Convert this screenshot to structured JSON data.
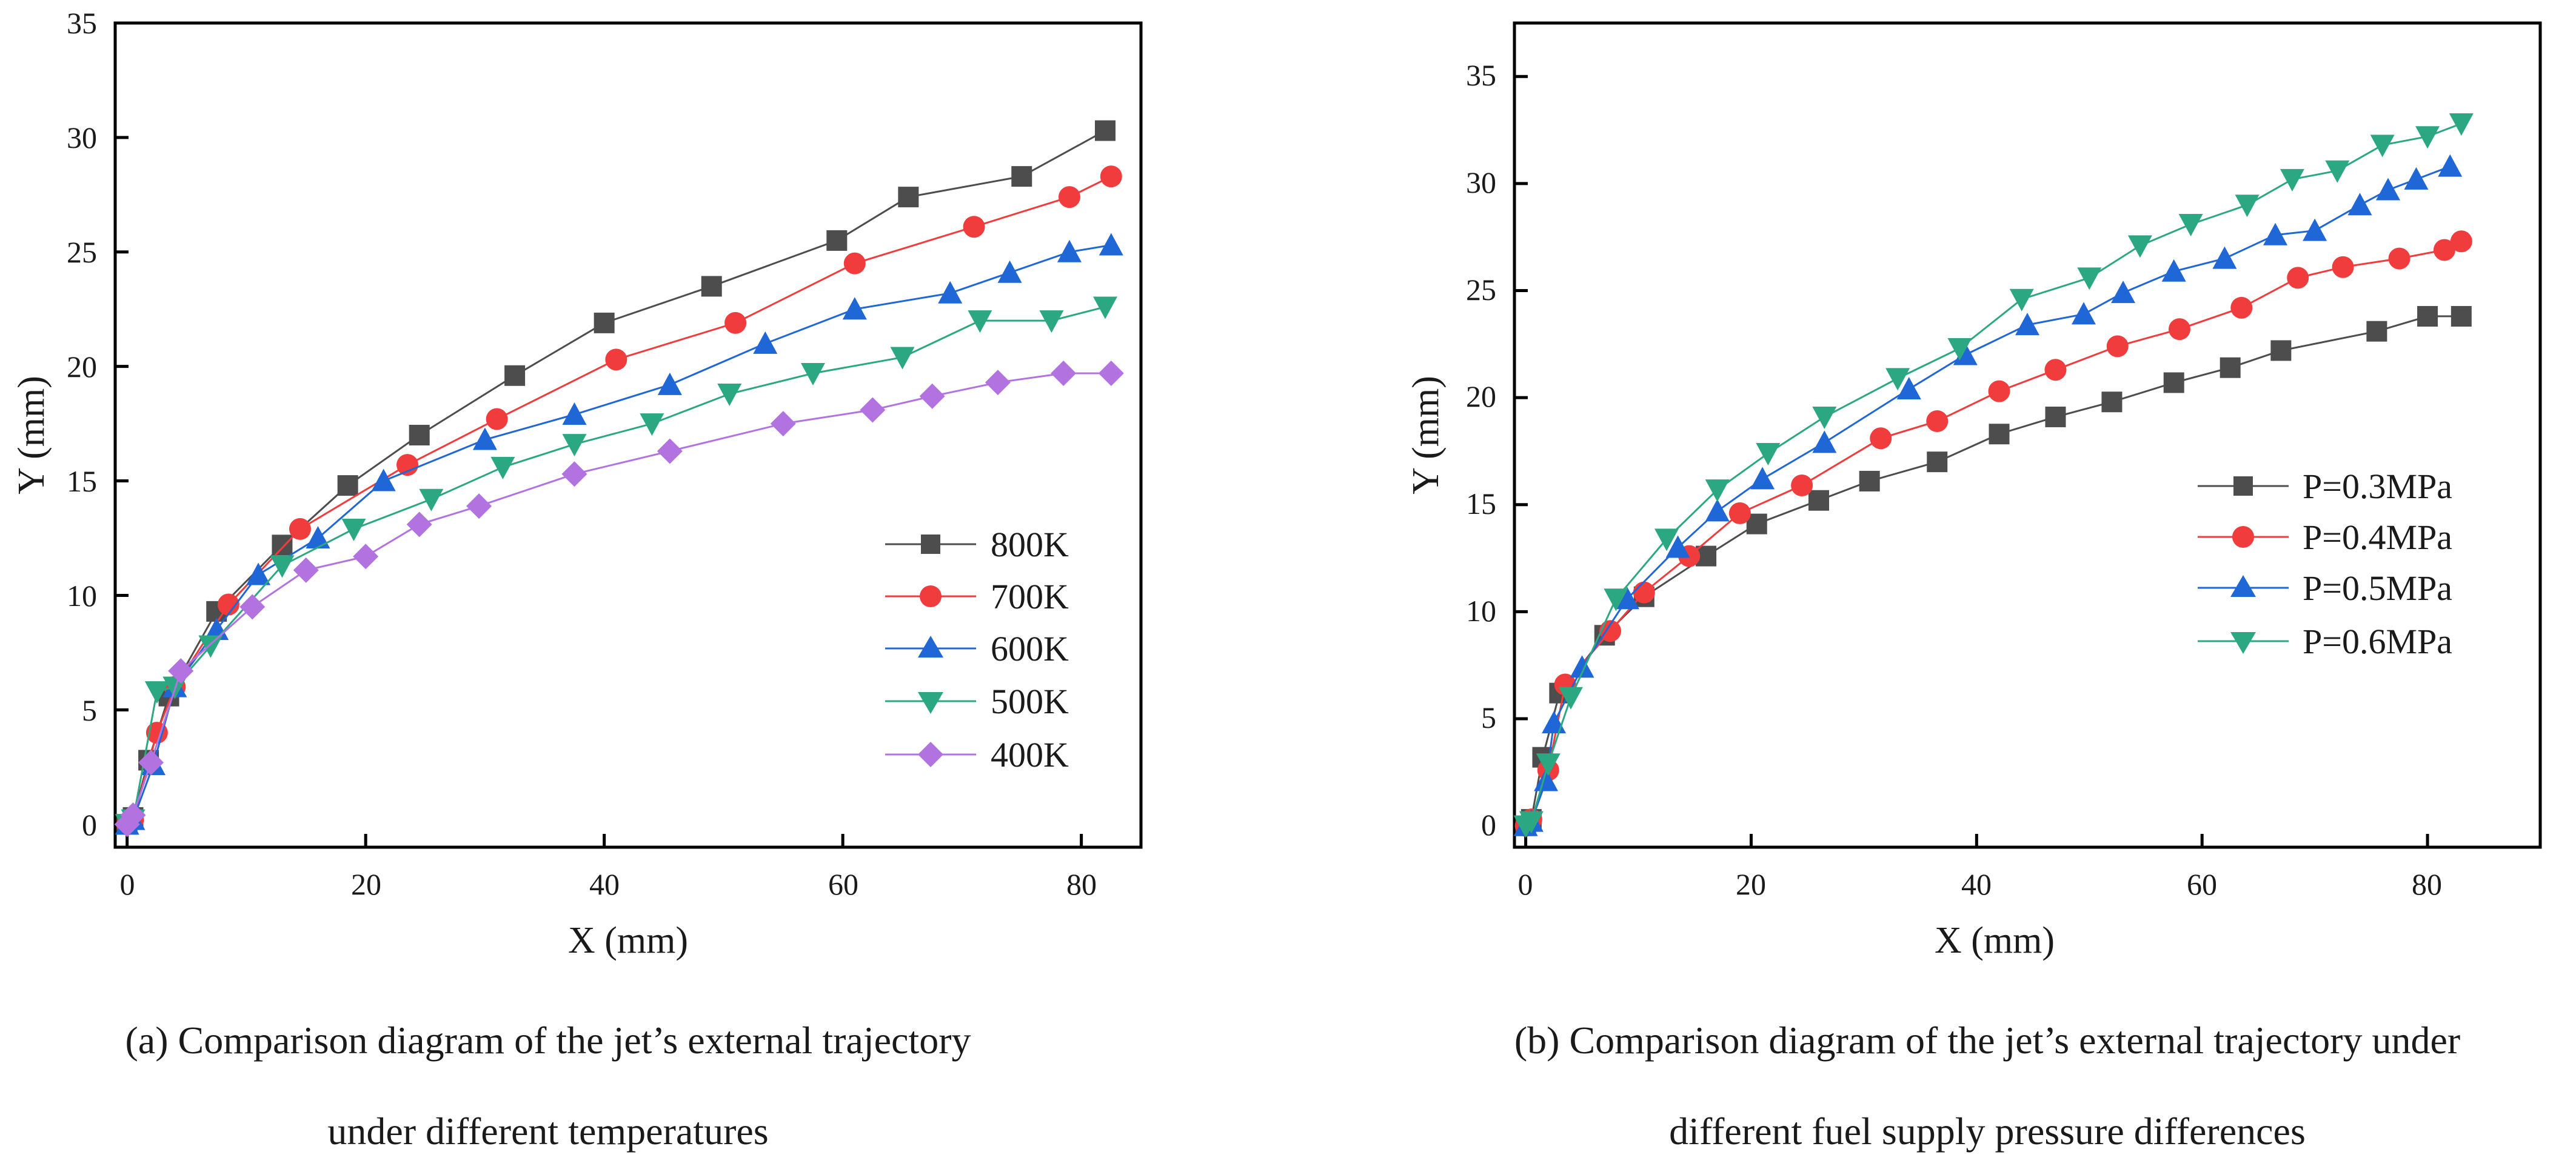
{
  "chart_data": [
    {
      "type": "line",
      "panel": "a",
      "title": "",
      "xlabel": "X (mm)",
      "ylabel": "Y (mm)",
      "xlim": [
        -1,
        85
      ],
      "ylim": [
        -1,
        35
      ],
      "xticks": [
        0,
        20,
        40,
        60,
        80
      ],
      "yticks": [
        0,
        5,
        10,
        15,
        20,
        25,
        30,
        35
      ],
      "grid": false,
      "legend_position": "bottom-right",
      "caption_line1": "(a) Comparison diagram of the jet’s external trajectory",
      "caption_line2": "under different temperatures",
      "series": [
        {
          "name": "800K",
          "color": "#4d4d4d",
          "marker": "square",
          "x": [
            0,
            0.5,
            1.8,
            3.5,
            7.5,
            13,
            18.5,
            24.5,
            32.5,
            40,
            49,
            59.5,
            65.5,
            75,
            82
          ],
          "y": [
            0,
            0.3,
            2.8,
            5.6,
            9.3,
            12.2,
            14.8,
            17,
            19.6,
            21.9,
            23.5,
            25.5,
            27.4,
            28.3,
            30.3
          ]
        },
        {
          "name": "700K",
          "color": "#f03c3c",
          "marker": "circle",
          "x": [
            0,
            0.5,
            2.5,
            4,
            8.5,
            14.5,
            23.5,
            31,
            41,
            51,
            61,
            71,
            79,
            82.5
          ],
          "y": [
            0,
            0.2,
            4,
            6,
            9.6,
            12.9,
            15.7,
            17.7,
            20.3,
            21.9,
            24.5,
            26.1,
            27.4,
            28.3
          ]
        },
        {
          "name": "600K",
          "color": "#1f66d6",
          "marker": "triangle-up",
          "x": [
            0,
            0.5,
            2.2,
            4,
            7.5,
            11,
            16,
            21.5,
            30,
            37.5,
            45.5,
            53.5,
            61,
            69,
            74,
            79,
            82.5
          ],
          "y": [
            0,
            0.2,
            2.6,
            6,
            8.5,
            10.9,
            12.5,
            15,
            16.8,
            17.9,
            19.2,
            21,
            22.5,
            23.2,
            24.1,
            25,
            25.3
          ]
        },
        {
          "name": "500K",
          "color": "#2ba882",
          "marker": "triangle-down",
          "x": [
            0,
            0.5,
            2.5,
            4,
            7,
            13,
            19,
            25.5,
            31.5,
            37.5,
            44,
            50.5,
            57.5,
            65,
            71.5,
            77.5,
            82
          ],
          "y": [
            0,
            0.2,
            5.8,
            6,
            7.8,
            11.3,
            12.9,
            14.2,
            15.6,
            16.6,
            17.5,
            18.8,
            19.7,
            20.4,
            22,
            22,
            22.6
          ]
        },
        {
          "name": "400K",
          "color": "#b273e0",
          "marker": "diamond",
          "x": [
            0,
            0.5,
            2,
            4.5,
            10.5,
            15,
            20,
            24.5,
            29.5,
            37.5,
            45.5,
            55,
            62.5,
            67.5,
            73,
            78.5,
            82.5
          ],
          "y": [
            0,
            0.4,
            2.7,
            6.7,
            9.5,
            11.1,
            11.7,
            13.1,
            13.9,
            15.3,
            16.3,
            17.5,
            18.1,
            18.7,
            19.3,
            19.7,
            19.7
          ]
        }
      ]
    },
    {
      "type": "line",
      "panel": "b",
      "title": "",
      "xlabel": "X (mm)",
      "ylabel": "Y (mm)",
      "xlim": [
        -1,
        90
      ],
      "ylim": [
        -1,
        37.5
      ],
      "xticks": [
        0,
        20,
        40,
        60,
        80
      ],
      "yticks": [
        0,
        5,
        10,
        15,
        20,
        25,
        30,
        35
      ],
      "grid": false,
      "legend_position": "center-right",
      "caption_line1": "(b) Comparison diagram of the jet’s external trajectory under",
      "caption_line2": "different fuel supply pressure differences",
      "series": [
        {
          "name": "P=0.3MPa",
          "color": "#4d4d4d",
          "marker": "square",
          "x": [
            0,
            0.5,
            1.5,
            3,
            7,
            10.5,
            16,
            20.5,
            26,
            30.5,
            36.5,
            42,
            47,
            52,
            57.5,
            62.5,
            67,
            75.5,
            80,
            83
          ],
          "y": [
            0,
            0.3,
            3.2,
            6.2,
            8.9,
            10.7,
            12.6,
            14.1,
            15.2,
            16.1,
            17,
            18.3,
            19.1,
            19.8,
            20.7,
            21.4,
            22.2,
            23.1,
            23.8,
            23.8
          ]
        },
        {
          "name": "P=0.4MPa",
          "color": "#f03c3c",
          "marker": "circle",
          "x": [
            0,
            0.5,
            2,
            3.5,
            7.5,
            10.5,
            14.5,
            19,
            24.5,
            31.5,
            36.5,
            42,
            47,
            52.5,
            58,
            63.5,
            68.5,
            72.5,
            77.5,
            81.5,
            83
          ],
          "y": [
            0,
            0.3,
            2.6,
            6.6,
            9.1,
            10.9,
            12.6,
            14.6,
            15.9,
            18.1,
            18.9,
            20.3,
            21.3,
            22.4,
            23.2,
            24.2,
            25.6,
            26.1,
            26.5,
            26.9,
            27.3
          ]
        },
        {
          "name": "P=0.5MPa",
          "color": "#1f66d6",
          "marker": "triangle-up",
          "x": [
            0,
            0.5,
            1.8,
            2.5,
            5,
            9,
            13.5,
            17,
            21,
            26.5,
            34,
            39,
            44.5,
            49.5,
            53,
            57.5,
            62,
            66.5,
            70,
            74,
            76.5,
            79,
            82
          ],
          "y": [
            0,
            0.2,
            2.1,
            4.8,
            7.4,
            10.6,
            13,
            14.7,
            16.2,
            17.9,
            20.4,
            22,
            23.4,
            23.9,
            24.9,
            25.9,
            26.5,
            27.6,
            27.8,
            29,
            29.7,
            30.2,
            30.8
          ]
        },
        {
          "name": "P=0.6MPa",
          "color": "#2ba882",
          "marker": "triangle-down",
          "x": [
            0,
            0.5,
            2,
            4,
            8,
            12.5,
            17,
            21.5,
            26.5,
            33,
            38.5,
            44,
            50,
            54.5,
            59,
            64,
            68,
            72,
            76,
            80,
            83
          ],
          "y": [
            0,
            0.2,
            2.9,
            6,
            10.6,
            13.4,
            15.7,
            17.4,
            19.1,
            20.9,
            22.3,
            24.6,
            25.6,
            27.1,
            28.1,
            29,
            30.2,
            30.6,
            31.8,
            32.2,
            32.8
          ]
        }
      ]
    }
  ]
}
